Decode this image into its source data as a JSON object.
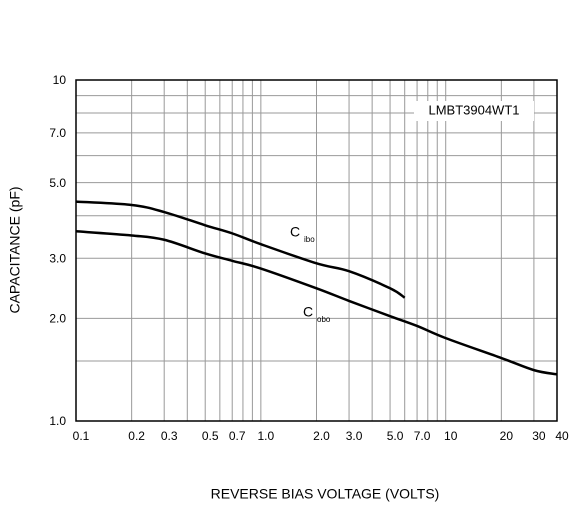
{
  "chart_data": {
    "type": "line",
    "xlabel": "REVERSE BIAS VOLTAGE (VOLTS)",
    "ylabel": "CAPACITANCE (pF)",
    "annotation": "LMBT3904WT1",
    "xscale": "log",
    "yscale": "log",
    "grid": true,
    "xlim": [
      0.1,
      40
    ],
    "ylim": [
      1,
      10
    ],
    "xticks": [
      0.1,
      0.2,
      0.3,
      0.5,
      0.7,
      {
        "value": 1,
        "label": "1.0"
      },
      {
        "value": 2,
        "label": "2.0"
      },
      {
        "value": 3,
        "label": "3.0"
      },
      {
        "value": 5,
        "label": "5.0"
      },
      {
        "value": 7,
        "label": "7.0"
      },
      10,
      20,
      30,
      40
    ],
    "yticks": [
      {
        "value": 1,
        "label": "1.0"
      },
      {
        "value": 2,
        "label": "2.0"
      },
      {
        "value": 3,
        "label": "3.0"
      },
      {
        "value": 5,
        "label": "5.0"
      },
      {
        "value": 7,
        "label": "7.0"
      },
      10
    ],
    "minor_xticks": [
      0.4,
      0.6,
      0.8,
      0.9,
      4,
      6,
      8,
      9
    ],
    "minor_yticks": [
      1.5,
      4,
      6,
      8,
      9
    ],
    "series": [
      {
        "label": "C",
        "sub": "ibo",
        "color": "#000000",
        "x": [
          0.1,
          0.2,
          0.3,
          0.5,
          0.7,
          1,
          2,
          3,
          5,
          6
        ],
        "values": [
          4.4,
          4.3,
          4.1,
          3.75,
          3.55,
          3.3,
          2.9,
          2.75,
          2.45,
          2.3
        ]
      },
      {
        "label": "C",
        "sub": "obo",
        "color": "#000000",
        "x": [
          0.1,
          0.2,
          0.3,
          0.5,
          0.7,
          1,
          2,
          3,
          5,
          7,
          10,
          20,
          30,
          40
        ],
        "values": [
          3.6,
          3.5,
          3.4,
          3.1,
          2.95,
          2.8,
          2.45,
          2.25,
          2.03,
          1.9,
          1.75,
          1.53,
          1.41,
          1.37
        ]
      }
    ]
  }
}
